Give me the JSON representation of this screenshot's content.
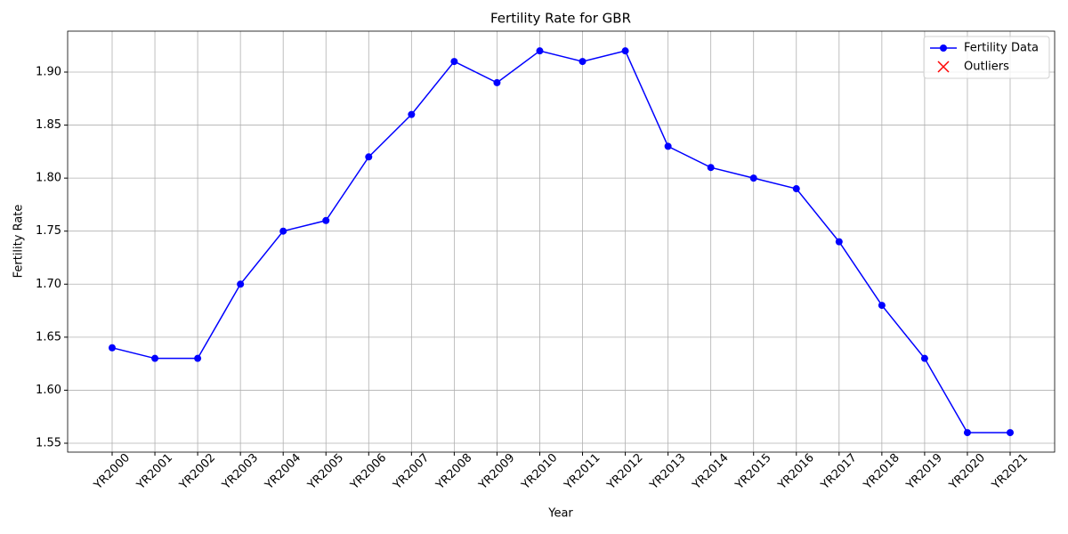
{
  "chart_data": {
    "type": "line",
    "title": "Fertility Rate for GBR",
    "xlabel": "Year",
    "ylabel": "Fertility Rate",
    "categories": [
      "YR2000",
      "YR2001",
      "YR2002",
      "YR2003",
      "YR2004",
      "YR2005",
      "YR2006",
      "YR2007",
      "YR2008",
      "YR2009",
      "YR2010",
      "YR2011",
      "YR2012",
      "YR2013",
      "YR2014",
      "YR2015",
      "YR2016",
      "YR2017",
      "YR2018",
      "YR2019",
      "YR2020",
      "YR2021"
    ],
    "series": [
      {
        "name": "Fertility Data",
        "color": "#0000ff",
        "marker": "o",
        "values": [
          1.64,
          1.63,
          1.63,
          1.7,
          1.75,
          1.76,
          1.82,
          1.86,
          1.91,
          1.89,
          1.92,
          1.91,
          1.92,
          1.83,
          1.81,
          1.8,
          1.79,
          1.74,
          1.68,
          1.63,
          1.56,
          1.56
        ]
      },
      {
        "name": "Outliers",
        "color": "#ff0000",
        "marker": "x",
        "values": [
          null,
          null,
          null,
          null,
          null,
          null,
          null,
          null,
          null,
          null,
          null,
          null,
          null,
          null,
          null,
          null,
          null,
          null,
          null,
          null,
          null,
          null
        ]
      }
    ],
    "ylim": [
      1.5416,
      1.9386
    ],
    "yticks": [
      1.55,
      {
        "value": 1.6,
        "label": "1.60"
      },
      1.65,
      {
        "value": 1.7,
        "label": "1.70"
      },
      1.75,
      {
        "value": 1.8,
        "label": "1.80"
      },
      1.85,
      {
        "value": 1.9,
        "label": "1.90"
      }
    ],
    "grid": true,
    "legend": "upper right"
  }
}
